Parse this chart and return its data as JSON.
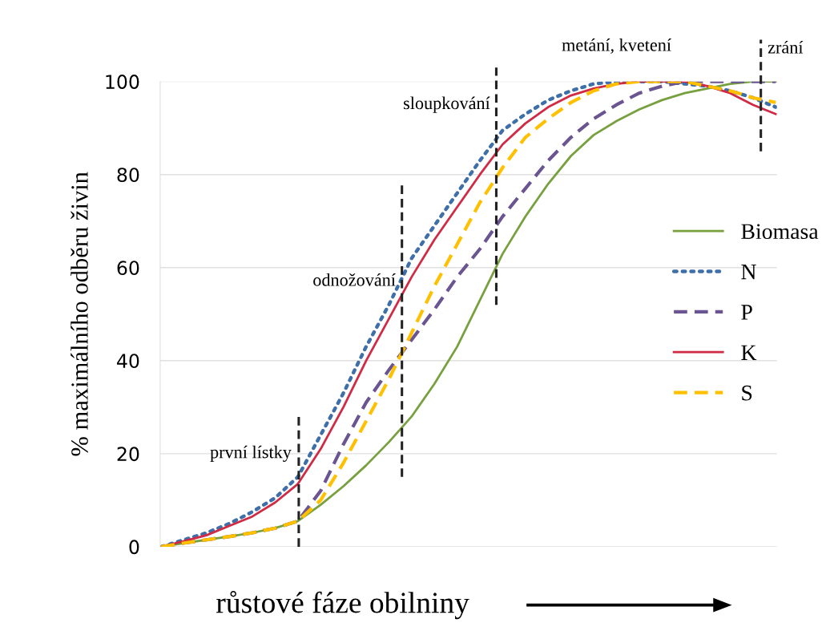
{
  "chart_data": {
    "type": "line",
    "xlabel": "růstové fáze obilniny",
    "ylabel": "% maximálního odběru živin",
    "categories": [
      null,
      null,
      null,
      null,
      null,
      null,
      null,
      null,
      null,
      null,
      null,
      null,
      null,
      null,
      null,
      null,
      null,
      null,
      null,
      null,
      null,
      null,
      null,
      null,
      null,
      null,
      null,
      null
    ],
    "series": [
      {
        "name": "Biomasa",
        "color": "#77a03f",
        "line_style": "solid",
        "values": [
          0,
          0.8,
          1.5,
          2.2,
          3,
          4,
          5.5,
          9,
          13,
          17.5,
          22.5,
          28,
          35,
          43,
          53,
          63,
          71,
          78,
          84,
          88.5,
          91.5,
          94,
          96,
          97.5,
          98.5,
          99.5,
          100,
          100
        ]
      },
      {
        "name": "N",
        "color": "#3f6fa8",
        "line_style": "dotted",
        "values": [
          0,
          1.5,
          3,
          5,
          7.5,
          10.5,
          15,
          24,
          33,
          43,
          52,
          62,
          69,
          76,
          83,
          89.5,
          93,
          96,
          98,
          99.5,
          100,
          100,
          100,
          99.5,
          99,
          98,
          96.5,
          94.5
        ]
      },
      {
        "name": "P",
        "color": "#6a5592",
        "line_style": "dashed",
        "values": [
          0,
          0.8,
          1.5,
          2.2,
          3,
          4,
          5.5,
          12,
          22,
          31,
          38,
          44.5,
          51,
          58,
          64,
          71,
          77,
          83,
          88,
          92,
          95,
          97.5,
          99,
          100,
          100,
          100,
          100,
          100
        ]
      },
      {
        "name": "K",
        "color": "#d02a45",
        "line_style": "solid",
        "values": [
          0,
          1.2,
          2.5,
          4.5,
          6.5,
          9.5,
          13.5,
          21,
          30,
          40,
          49,
          58,
          66,
          73,
          80,
          86.5,
          91,
          94.5,
          97,
          98.5,
          99.5,
          100,
          100,
          100,
          99,
          97.5,
          95,
          93
        ]
      },
      {
        "name": "S",
        "color": "#ffc000",
        "line_style": "dashed",
        "values": [
          0,
          0.8,
          1.5,
          2.2,
          3,
          4,
          5.5,
          10,
          18,
          27,
          36,
          46,
          56,
          65,
          74,
          81.5,
          88,
          92,
          95.5,
          98,
          99.5,
          100,
          100,
          100,
          99,
          98,
          96.5,
          95.5
        ]
      }
    ],
    "ylim": [
      0,
      100
    ],
    "yticks": [
      0,
      20,
      40,
      60,
      80,
      100
    ],
    "grid": "y",
    "legend": "right",
    "tick_labels": "y",
    "annotations": [
      "metání, kvetení",
      "zrání",
      "sloupkování",
      "odnožování",
      "první lístky"
    ]
  }
}
